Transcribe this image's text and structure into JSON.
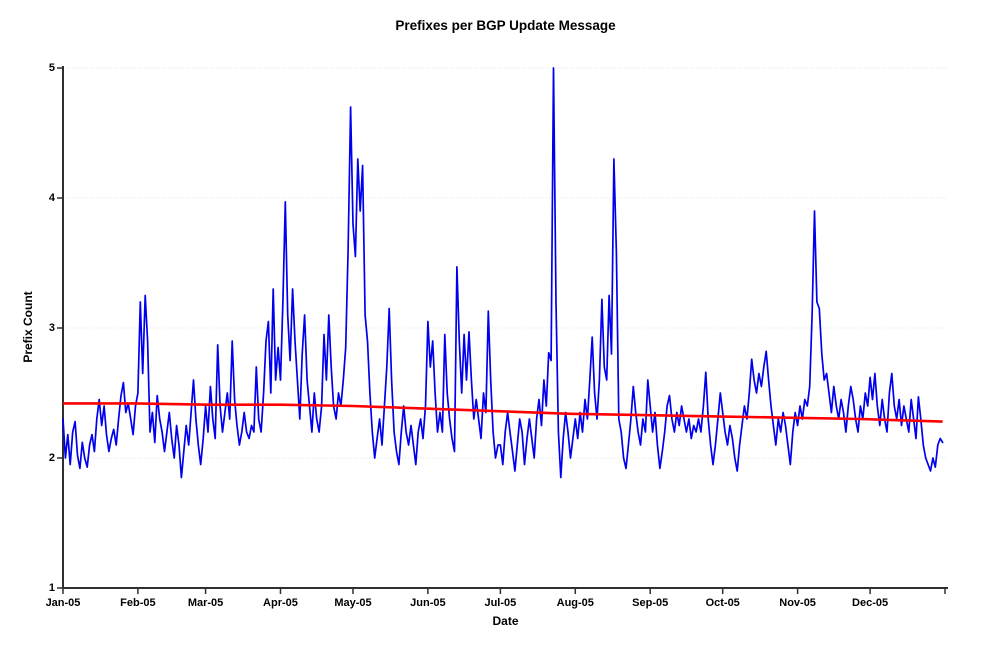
{
  "chart": {
    "title": "Prefixes per BGP Update Message",
    "xlabel": "Date",
    "ylabel": "Prefix Count",
    "colors": {
      "series": "#0000ee",
      "trend": "#ff0000",
      "grid": "#e0e0e0",
      "axis": "#2f2f2f",
      "text": "#000000",
      "background": "#ffffff"
    }
  },
  "chart_data": {
    "type": "line",
    "title": "Prefixes per BGP Update Message",
    "xlabel": "Date",
    "ylabel": "Prefix Count",
    "ylim": [
      1,
      5
    ],
    "y_ticks": [
      1,
      2,
      3,
      4,
      5
    ],
    "x_ticks": [
      "Jan-05",
      "Feb-05",
      "Mar-05",
      "Apr-05",
      "May-05",
      "Jun-05",
      "Jul-05",
      "Aug-05",
      "Sep-05",
      "Oct-05",
      "Nov-05",
      "Dec-05"
    ],
    "x_tick_days": [
      0,
      31,
      59,
      90,
      120,
      151,
      181,
      212,
      243,
      273,
      304,
      334
    ],
    "x_axis_end_day": 365,
    "grid": true,
    "legend": "none",
    "series": [
      {
        "name": "prefix_count_daily",
        "color": "#0000ee",
        "x_unit": "day_of_year_2005",
        "values": [
          2.3,
          2.0,
          2.18,
          1.95,
          2.2,
          2.28,
          2.02,
          1.92,
          2.12,
          2.0,
          1.93,
          2.1,
          2.18,
          2.05,
          2.3,
          2.45,
          2.25,
          2.4,
          2.18,
          2.05,
          2.15,
          2.22,
          2.1,
          2.3,
          2.48,
          2.58,
          2.35,
          2.42,
          2.3,
          2.18,
          2.4,
          2.5,
          3.2,
          2.65,
          3.25,
          2.9,
          2.2,
          2.35,
          2.12,
          2.48,
          2.3,
          2.2,
          2.05,
          2.2,
          2.35,
          2.15,
          2.0,
          2.25,
          2.1,
          1.85,
          2.05,
          2.25,
          2.1,
          2.35,
          2.6,
          2.3,
          2.1,
          1.95,
          2.15,
          2.4,
          2.2,
          2.55,
          2.3,
          2.15,
          2.87,
          2.4,
          2.2,
          2.35,
          2.5,
          2.3,
          2.9,
          2.45,
          2.25,
          2.1,
          2.2,
          2.35,
          2.2,
          2.15,
          2.25,
          2.2,
          2.7,
          2.3,
          2.2,
          2.5,
          2.9,
          3.05,
          2.5,
          3.3,
          2.6,
          2.85,
          2.6,
          3.2,
          3.97,
          3.1,
          2.75,
          3.3,
          2.9,
          2.6,
          2.3,
          2.8,
          3.1,
          2.6,
          2.4,
          2.2,
          2.5,
          2.3,
          2.2,
          2.4,
          2.95,
          2.6,
          3.1,
          2.7,
          2.4,
          2.3,
          2.5,
          2.4,
          2.6,
          2.85,
          3.6,
          4.7,
          3.8,
          3.55,
          4.3,
          3.9,
          4.25,
          3.1,
          2.9,
          2.5,
          2.2,
          2.0,
          2.15,
          2.3,
          2.1,
          2.4,
          2.7,
          3.15,
          2.6,
          2.2,
          2.05,
          1.95,
          2.2,
          2.4,
          2.2,
          2.1,
          2.25,
          2.1,
          1.95,
          2.2,
          2.3,
          2.15,
          2.4,
          3.05,
          2.7,
          2.9,
          2.5,
          2.2,
          2.35,
          2.2,
          2.95,
          2.5,
          2.3,
          2.15,
          2.05,
          3.47,
          2.9,
          2.5,
          2.95,
          2.6,
          2.97,
          2.6,
          2.3,
          2.45,
          2.3,
          2.15,
          2.5,
          2.35,
          3.13,
          2.6,
          2.2,
          2.0,
          2.1,
          2.1,
          1.95,
          2.2,
          2.35,
          2.2,
          2.05,
          1.9,
          2.1,
          2.3,
          2.2,
          1.95,
          2.15,
          2.3,
          2.15,
          2.0,
          2.3,
          2.45,
          2.25,
          2.6,
          2.4,
          2.81,
          2.75,
          5.0,
          3.2,
          2.2,
          1.85,
          2.15,
          2.35,
          2.2,
          2.0,
          2.15,
          2.3,
          2.15,
          2.35,
          2.2,
          2.45,
          2.3,
          2.6,
          2.93,
          2.5,
          2.3,
          2.6,
          3.22,
          2.7,
          2.6,
          3.25,
          2.8,
          4.3,
          3.58,
          2.3,
          2.2,
          2.0,
          1.92,
          2.1,
          2.3,
          2.55,
          2.35,
          2.2,
          2.1,
          2.3,
          2.2,
          2.6,
          2.4,
          2.2,
          2.35,
          2.1,
          1.92,
          2.05,
          2.2,
          2.4,
          2.48,
          2.3,
          2.2,
          2.35,
          2.25,
          2.4,
          2.3,
          2.2,
          2.3,
          2.15,
          2.25,
          2.2,
          2.3,
          2.2,
          2.4,
          2.66,
          2.3,
          2.1,
          1.95,
          2.1,
          2.3,
          2.5,
          2.35,
          2.2,
          2.1,
          2.25,
          2.15,
          2.0,
          1.9,
          2.1,
          2.25,
          2.4,
          2.3,
          2.5,
          2.76,
          2.6,
          2.5,
          2.65,
          2.55,
          2.7,
          2.82,
          2.6,
          2.4,
          2.25,
          2.1,
          2.3,
          2.2,
          2.35,
          2.25,
          2.1,
          1.95,
          2.2,
          2.35,
          2.25,
          2.4,
          2.3,
          2.45,
          2.4,
          2.55,
          3.1,
          3.9,
          3.2,
          3.15,
          2.8,
          2.6,
          2.65,
          2.5,
          2.35,
          2.55,
          2.4,
          2.3,
          2.45,
          2.35,
          2.2,
          2.4,
          2.55,
          2.45,
          2.3,
          2.2,
          2.4,
          2.3,
          2.5,
          2.4,
          2.62,
          2.45,
          2.65,
          2.4,
          2.25,
          2.45,
          2.3,
          2.2,
          2.5,
          2.65,
          2.4,
          2.3,
          2.45,
          2.25,
          2.4,
          2.3,
          2.2,
          2.45,
          2.3,
          2.15,
          2.47,
          2.3,
          2.1,
          2.0,
          1.95,
          1.9,
          2.0,
          1.93,
          2.1,
          2.15,
          2.12
        ]
      },
      {
        "name": "trend_line",
        "color": "#ff0000",
        "points": [
          [
            0,
            2.42
          ],
          [
            30,
            2.42
          ],
          [
            60,
            2.41
          ],
          [
            90,
            2.41
          ],
          [
            120,
            2.4
          ],
          [
            150,
            2.38
          ],
          [
            180,
            2.36
          ],
          [
            210,
            2.34
          ],
          [
            240,
            2.33
          ],
          [
            270,
            2.32
          ],
          [
            300,
            2.31
          ],
          [
            330,
            2.3
          ],
          [
            364,
            2.28
          ]
        ]
      }
    ]
  }
}
